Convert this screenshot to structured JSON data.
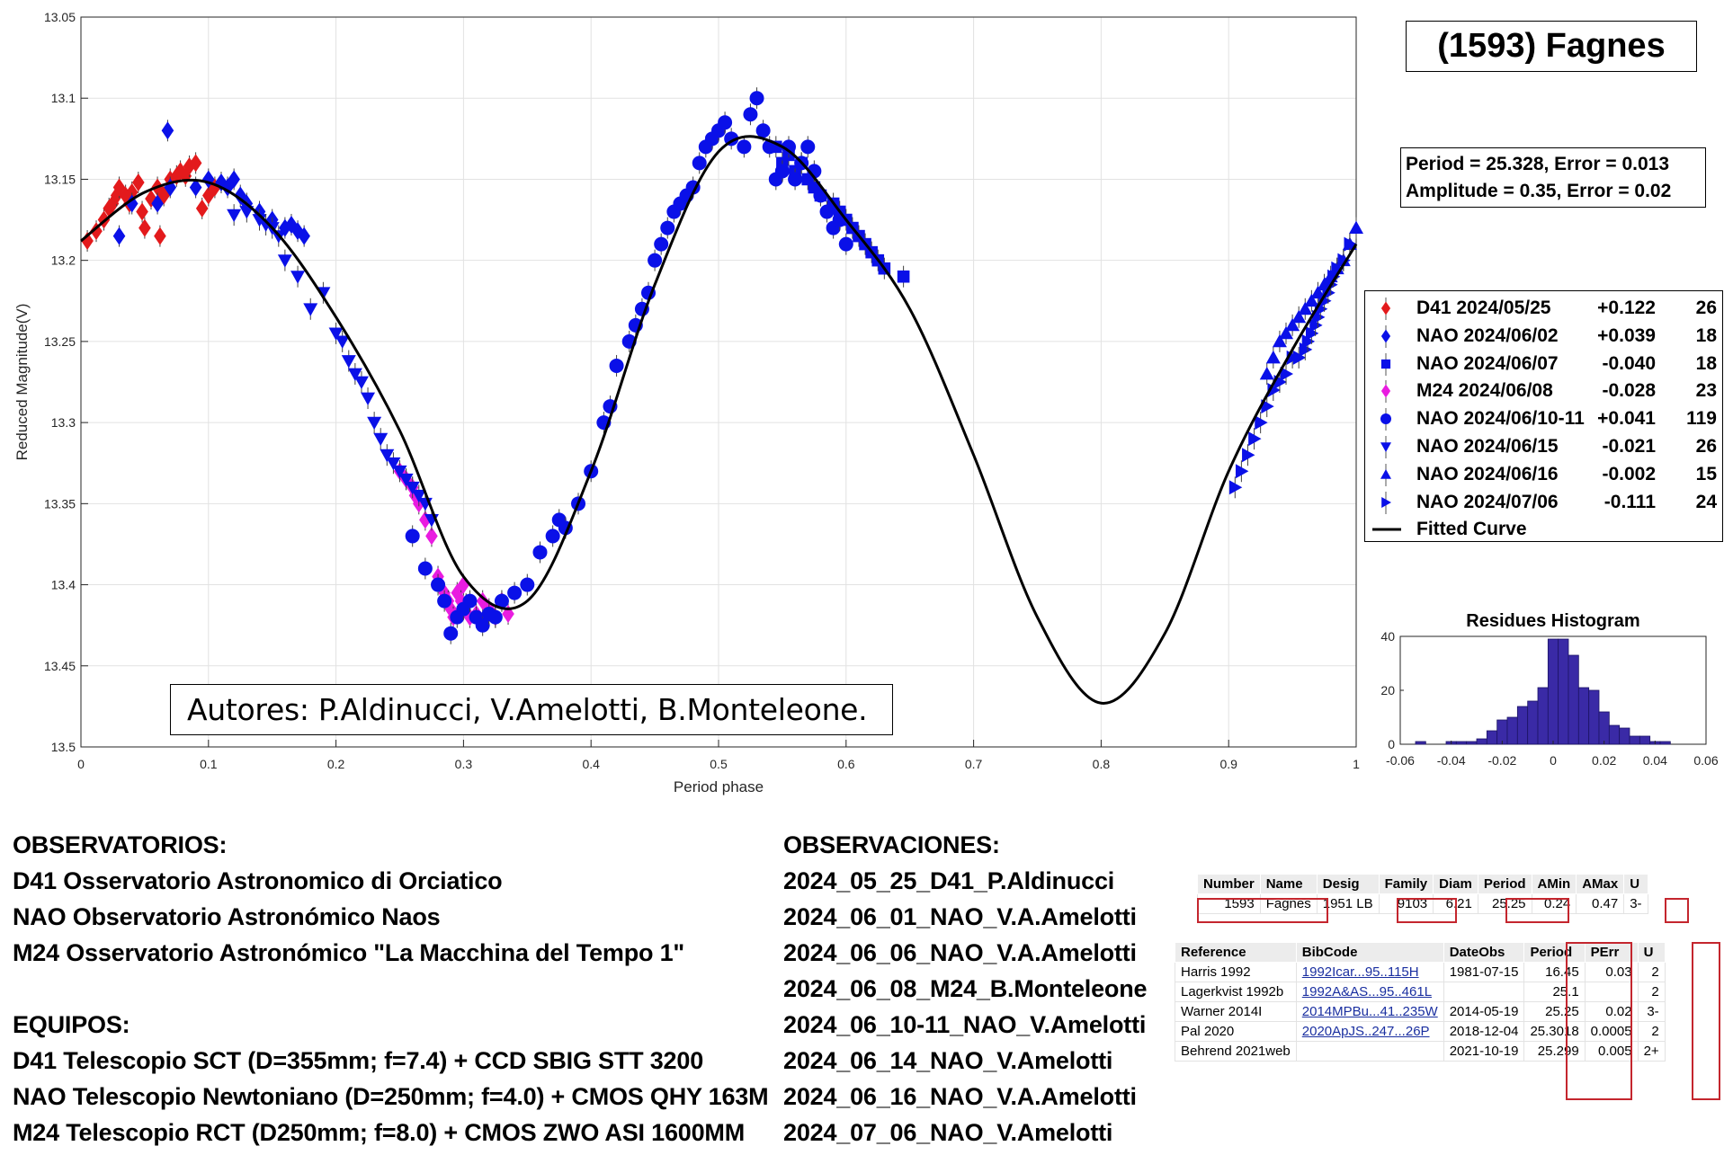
{
  "title": "(1593) Fagnes",
  "fit": {
    "period_line": "Period =  25.328, Error = 0.013",
    "amplitude_line": "Amplitude = 0.35, Error = 0.02"
  },
  "authors": "Autores: P.Aldinucci, V.Amelotti, B.Monteleone.",
  "colors": {
    "red": "#e31a1c",
    "blue": "#0a10e8",
    "magenta": "#e91ce0",
    "curve": "#000000",
    "hist": "#3a2aa6"
  },
  "chart_data": [
    {
      "type": "scatter",
      "xlabel": "Period phase",
      "ylabel": "Reduced Magnitude(V)",
      "xlim": [
        0,
        1
      ],
      "ylim": [
        13.05,
        13.5
      ],
      "y_reversed": true,
      "grid": true,
      "xticks": [
        "0",
        "0.1",
        "0.2",
        "0.3",
        "0.4",
        "0.5",
        "0.6",
        "0.7",
        "0.8",
        "0.9",
        "1"
      ],
      "yticks": [
        "13.05",
        "13.1",
        "13.15",
        "13.2",
        "13.25",
        "13.3",
        "13.35",
        "13.4",
        "13.45",
        "13.5"
      ],
      "legend_position": "right",
      "legend": [
        {
          "name": "D41 2024/05/25",
          "offset": "+0.122",
          "count": "26",
          "marker": "diamond",
          "color": "#e31a1c"
        },
        {
          "name": "NAO 2024/06/02",
          "offset": "+0.039",
          "count": "18",
          "marker": "diamond",
          "color": "#0a10e8"
        },
        {
          "name": "NAO 2024/06/07",
          "offset": "-0.040",
          "count": "18",
          "marker": "square",
          "color": "#0a10e8"
        },
        {
          "name": "M24 2024/06/08",
          "offset": "-0.028",
          "count": "23",
          "marker": "diamond",
          "color": "#e91ce0"
        },
        {
          "name": "NAO 2024/06/10-11",
          "offset": "+0.041",
          "count": "119",
          "marker": "circle",
          "color": "#0a10e8"
        },
        {
          "name": "NAO 2024/06/15",
          "offset": "-0.021",
          "count": "26",
          "marker": "triangle-down",
          "color": "#0a10e8"
        },
        {
          "name": "NAO 2024/06/16",
          "offset": "-0.002",
          "count": "15",
          "marker": "triangle-up",
          "color": "#0a10e8"
        },
        {
          "name": "NAO 2024/07/06",
          "offset": "-0.111",
          "count": "24",
          "marker": "triangle-right",
          "color": "#0a10e8"
        },
        {
          "name": "Fitted Curve",
          "offset": "",
          "count": "",
          "marker": "line",
          "color": "#000000"
        }
      ],
      "fitted_curve": {
        "x": [
          0,
          0.05,
          0.1,
          0.15,
          0.2,
          0.25,
          0.3,
          0.35,
          0.4,
          0.45,
          0.5,
          0.55,
          0.6,
          0.65,
          0.7,
          0.75,
          0.8,
          0.85,
          0.9,
          0.95,
          1.0
        ],
        "y": [
          13.188,
          13.158,
          13.152,
          13.18,
          13.235,
          13.305,
          13.395,
          13.41,
          13.33,
          13.215,
          13.133,
          13.13,
          13.175,
          13.23,
          13.32,
          13.42,
          13.473,
          13.43,
          13.33,
          13.255,
          13.19
        ]
      },
      "series": [
        {
          "name": "D41 2024/05/25",
          "marker": "diamond",
          "color": "#e31a1c",
          "x": [
            0.005,
            0.012,
            0.018,
            0.022,
            0.025,
            0.028,
            0.03,
            0.035,
            0.038,
            0.04,
            0.045,
            0.048,
            0.05,
            0.055,
            0.06,
            0.062,
            0.065,
            0.07,
            0.075,
            0.078,
            0.082,
            0.085,
            0.09,
            0.095,
            0.1,
            0.105
          ],
          "y": [
            13.188,
            13.182,
            13.175,
            13.168,
            13.165,
            13.16,
            13.155,
            13.16,
            13.165,
            13.158,
            13.152,
            13.17,
            13.18,
            13.162,
            13.155,
            13.185,
            13.16,
            13.15,
            13.148,
            13.145,
            13.148,
            13.142,
            13.14,
            13.168,
            13.16,
            13.155
          ]
        },
        {
          "name": "NAO 2024/06/02",
          "marker": "diamond",
          "color": "#0a10e8",
          "x": [
            0.03,
            0.04,
            0.06,
            0.068,
            0.07,
            0.09,
            0.1,
            0.11,
            0.115,
            0.12,
            0.125,
            0.13,
            0.14,
            0.15,
            0.16,
            0.165,
            0.17,
            0.175
          ],
          "y": [
            13.185,
            13.165,
            13.165,
            13.12,
            13.155,
            13.155,
            13.15,
            13.152,
            13.155,
            13.15,
            13.16,
            13.165,
            13.17,
            13.175,
            13.18,
            13.178,
            13.182,
            13.185
          ]
        },
        {
          "name": "NAO 2024/06/07",
          "marker": "square",
          "color": "#0a10e8",
          "x": [
            0.545,
            0.55,
            0.555,
            0.56,
            0.565,
            0.57,
            0.575,
            0.58,
            0.59,
            0.595,
            0.6,
            0.605,
            0.61,
            0.615,
            0.62,
            0.625,
            0.63,
            0.645
          ],
          "y": [
            13.13,
            13.14,
            13.135,
            13.145,
            13.14,
            13.15,
            13.155,
            13.16,
            13.165,
            13.17,
            13.175,
            13.18,
            13.185,
            13.19,
            13.195,
            13.2,
            13.205,
            13.21
          ]
        },
        {
          "name": "M24 2024/06/08",
          "marker": "diamond",
          "color": "#e91ce0",
          "x": [
            0.25,
            0.255,
            0.26,
            0.262,
            0.265,
            0.27,
            0.275,
            0.28,
            0.285,
            0.288,
            0.29,
            0.292,
            0.295,
            0.298,
            0.3,
            0.302,
            0.305,
            0.31,
            0.315,
            0.32,
            0.325,
            0.33,
            0.335
          ],
          "y": [
            13.33,
            13.335,
            13.34,
            13.345,
            13.35,
            13.36,
            13.37,
            13.395,
            13.405,
            13.41,
            13.415,
            13.42,
            13.405,
            13.41,
            13.4,
            13.412,
            13.42,
            13.418,
            13.41,
            13.415,
            13.42,
            13.41,
            13.418
          ]
        },
        {
          "name": "NAO 2024/06/10-11",
          "marker": "circle",
          "color": "#0a10e8",
          "x": [
            0.26,
            0.27,
            0.28,
            0.285,
            0.29,
            0.295,
            0.3,
            0.305,
            0.31,
            0.315,
            0.32,
            0.325,
            0.33,
            0.34,
            0.35,
            0.36,
            0.37,
            0.375,
            0.38,
            0.39,
            0.4,
            0.41,
            0.415,
            0.42,
            0.43,
            0.435,
            0.44,
            0.445,
            0.45,
            0.455,
            0.46,
            0.465,
            0.47,
            0.475,
            0.48,
            0.485,
            0.49,
            0.495,
            0.5,
            0.505,
            0.51,
            0.52,
            0.525,
            0.53,
            0.535,
            0.54,
            0.545,
            0.55,
            0.555,
            0.56,
            0.565,
            0.57,
            0.575,
            0.58,
            0.585,
            0.59,
            0.595,
            0.6
          ],
          "y": [
            13.37,
            13.39,
            13.4,
            13.41,
            13.43,
            13.42,
            13.415,
            13.41,
            13.42,
            13.425,
            13.418,
            13.42,
            13.41,
            13.405,
            13.4,
            13.38,
            13.37,
            13.36,
            13.365,
            13.35,
            13.33,
            13.3,
            13.29,
            13.265,
            13.25,
            13.24,
            13.23,
            13.22,
            13.2,
            13.19,
            13.18,
            13.17,
            13.165,
            13.16,
            13.155,
            13.14,
            13.13,
            13.125,
            13.12,
            13.115,
            13.125,
            13.13,
            13.11,
            13.1,
            13.12,
            13.13,
            13.15,
            13.145,
            13.13,
            13.15,
            13.14,
            13.13,
            13.145,
            13.16,
            13.17,
            13.18,
            13.175,
            13.19
          ]
        },
        {
          "name": "NAO 2024/06/15",
          "marker": "triangle-down",
          "color": "#0a10e8",
          "x": [
            0.12,
            0.13,
            0.14,
            0.145,
            0.15,
            0.155,
            0.16,
            0.17,
            0.18,
            0.19,
            0.2,
            0.205,
            0.21,
            0.215,
            0.22,
            0.225,
            0.23,
            0.235,
            0.24,
            0.245,
            0.25,
            0.255,
            0.26,
            0.265,
            0.27,
            0.275
          ],
          "y": [
            13.172,
            13.17,
            13.175,
            13.178,
            13.18,
            13.185,
            13.2,
            13.21,
            13.23,
            13.22,
            13.245,
            13.25,
            13.262,
            13.27,
            13.275,
            13.285,
            13.3,
            13.31,
            13.32,
            13.325,
            13.33,
            13.335,
            13.34,
            13.345,
            13.35,
            13.36
          ]
        },
        {
          "name": "NAO 2024/06/16",
          "marker": "triangle-up",
          "color": "#0a10e8",
          "x": [
            0.93,
            0.935,
            0.94,
            0.945,
            0.95,
            0.955,
            0.96,
            0.965,
            0.97,
            0.975,
            0.98,
            0.985,
            0.99,
            0.995,
            1.0
          ],
          "y": [
            13.27,
            13.26,
            13.25,
            13.245,
            13.24,
            13.235,
            13.23,
            13.225,
            13.22,
            13.215,
            13.21,
            13.205,
            13.2,
            13.19,
            13.18
          ]
        },
        {
          "name": "NAO 2024/07/06",
          "marker": "triangle-right",
          "color": "#0a10e8",
          "x": [
            0.905,
            0.91,
            0.915,
            0.92,
            0.925,
            0.93,
            0.935,
            0.94,
            0.945,
            0.95,
            0.955,
            0.96,
            0.962,
            0.965,
            0.968,
            0.97,
            0.972,
            0.975,
            0.978,
            0.98,
            0.982,
            0.985,
            0.99,
            0.995
          ],
          "y": [
            13.34,
            13.33,
            13.32,
            13.31,
            13.3,
            13.29,
            13.28,
            13.275,
            13.27,
            13.26,
            13.26,
            13.255,
            13.25,
            13.245,
            13.24,
            13.235,
            13.23,
            13.225,
            13.22,
            13.215,
            13.21,
            13.205,
            13.2,
            13.19
          ]
        }
      ]
    },
    {
      "type": "bar",
      "title": "Residues Histogram",
      "xlim": [
        -0.06,
        0.06
      ],
      "ylim": [
        0,
        40
      ],
      "xticks": [
        "-0.06",
        "-0.04",
        "-0.02",
        "0",
        "0.02",
        "0.04",
        "0.06"
      ],
      "yticks": [
        "0",
        "20",
        "40"
      ],
      "bin_centers": [
        -0.052,
        -0.048,
        -0.044,
        -0.04,
        -0.036,
        -0.032,
        -0.028,
        -0.024,
        -0.02,
        -0.016,
        -0.012,
        -0.008,
        -0.004,
        0.0,
        0.004,
        0.008,
        0.012,
        0.016,
        0.02,
        0.024,
        0.028,
        0.032,
        0.036,
        0.04,
        0.044
      ],
      "values": [
        1,
        0,
        0,
        1,
        1,
        1,
        2,
        5,
        9,
        10,
        14,
        16,
        21,
        39,
        39,
        33,
        21,
        20,
        12,
        7,
        6,
        3,
        3,
        1,
        1
      ]
    }
  ],
  "observatorios": {
    "header": "OBSERVATORIOS:",
    "lines": [
      "D41 Osservatorio Astronomico di Orciatico",
      "NAO Observatorio Astronómico Naos",
      "M24 Osservatorio Astronómico \"La Macchina del Tempo 1\""
    ]
  },
  "equipos": {
    "header": "EQUIPOS:",
    "lines": [
      "D41 Telescopio SCT (D=355mm; f=7.4) + CCD SBIG STT 3200",
      "NAO Telescopio Newtoniano (D=250mm; f=4.0) + CMOS QHY 163M",
      "M24 Telescopio RCT (D250mm; f=8.0) + CMOS ZWO ASI 1600MM"
    ]
  },
  "observaciones": {
    "header": "OBSERVACIONES:",
    "lines": [
      "2024_05_25_D41_P.Aldinucci",
      "2024_06_01_NAO_V.A.Amelotti",
      "2024_06_06_NAO_V.A.Amelotti",
      "2024_06_08_M24_B.Monteleone",
      "2024_06_10-11_NAO_V.Amelotti",
      "2024_06_14_NAO_V.Amelotti",
      "2024_06_16_NAO_V.A.Amelotti",
      "2024_07_06_NAO_V.Amelotti"
    ]
  },
  "lcdb_summary": {
    "headers": [
      "Number",
      "Name",
      "Desig",
      "Family",
      "Diam",
      "Period",
      "AMin",
      "AMax",
      "U"
    ],
    "row": [
      "1593",
      "Fagnes",
      "1951 LB",
      "9103",
      "6.21",
      "25.25",
      "0.24",
      "0.47",
      "3-"
    ]
  },
  "lcdb_refs": {
    "headers": [
      "Reference",
      "BibCode",
      "DateObs",
      "Period",
      "PErr",
      "U"
    ],
    "rows": [
      [
        "Harris 1992",
        "1992Icar...95..115H",
        "1981-07-15",
        "16.45",
        "0.03",
        "2"
      ],
      [
        "Lagerkvist 1992b",
        "1992A&AS...95..461L",
        "",
        "25.1",
        "",
        "2"
      ],
      [
        "Warner 2014I",
        "2014MPBu...41..235W",
        "2014-05-19",
        "25.25",
        "0.02",
        "3-"
      ],
      [
        "Pal 2020",
        "2020ApJS..247...26P",
        "2018-12-04",
        "25.3018",
        "0.0005",
        "2"
      ],
      [
        "Behrend 2021web",
        "",
        "2021-10-19",
        "25.299",
        "0.005",
        "2+"
      ]
    ]
  }
}
